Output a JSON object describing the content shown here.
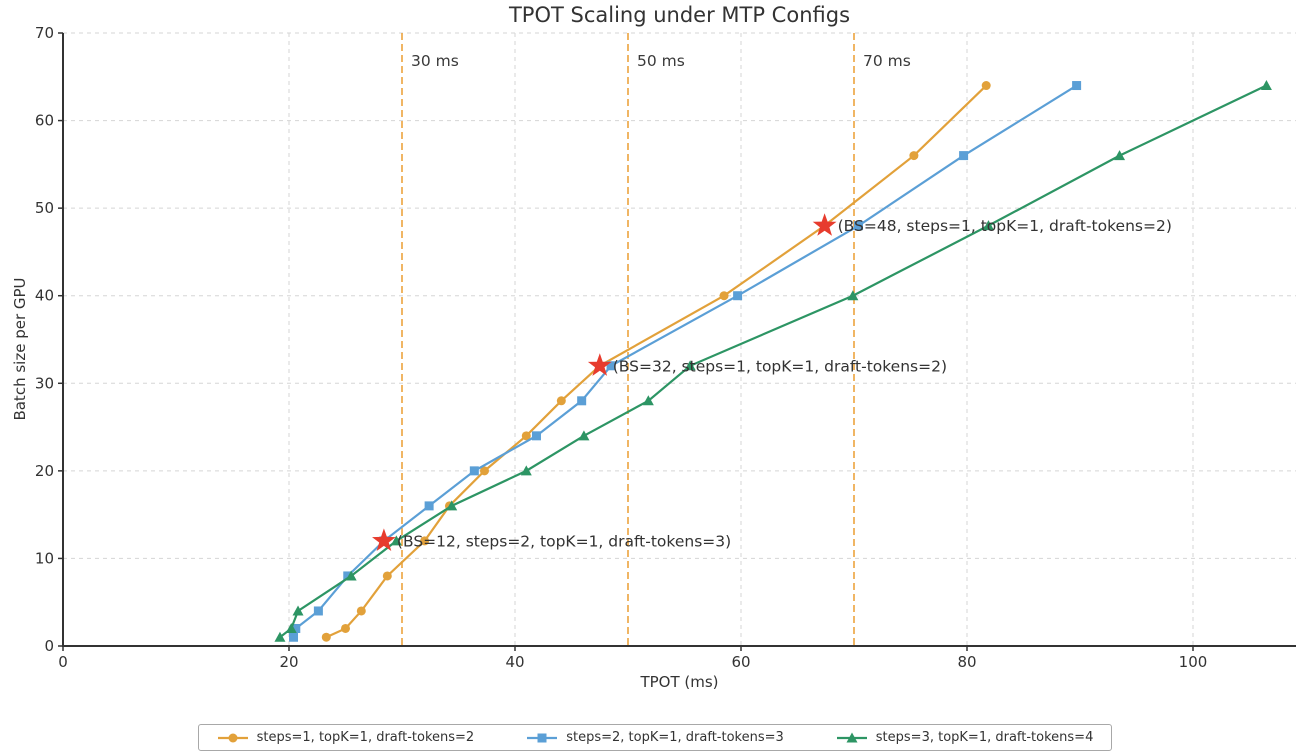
{
  "chart_data": {
    "type": "line",
    "title": "TPOT Scaling under MTP Configs",
    "xlabel": "TPOT (ms)",
    "ylabel": "Batch size per GPU",
    "xlim": [
      0,
      109
    ],
    "ylim": [
      0,
      70
    ],
    "xticks": [
      0,
      20,
      40,
      60,
      80,
      100
    ],
    "yticks": [
      0,
      10,
      20,
      30,
      40,
      50,
      60,
      70
    ],
    "grid": true,
    "legend_position": "bottom-center",
    "batch_sizes": [
      1,
      2,
      4,
      8,
      12,
      16,
      20,
      24,
      28,
      32,
      40,
      48,
      56,
      64
    ],
    "series": [
      {
        "name": "steps=1, topK=1, draft-tokens=2",
        "marker": "circle",
        "color": "#E2A13A",
        "x": [
          23.3,
          25.0,
          26.4,
          28.7,
          32.0,
          34.2,
          37.3,
          41.0,
          44.1,
          47.5,
          58.5,
          67.4,
          75.3,
          81.7
        ],
        "y": [
          1,
          2,
          4,
          8,
          12,
          16,
          20,
          24,
          28,
          32,
          40,
          48,
          56,
          64
        ]
      },
      {
        "name": "steps=2, topK=1, draft-tokens=3",
        "marker": "square",
        "color": "#5B9FD6",
        "x": [
          20.4,
          20.6,
          22.6,
          25.2,
          28.4,
          32.4,
          36.4,
          41.9,
          45.9,
          48.5,
          59.7,
          70.4,
          79.7,
          89.7
        ],
        "y": [
          1,
          2,
          4,
          8,
          12,
          16,
          20,
          24,
          28,
          32,
          40,
          48,
          56,
          64
        ]
      },
      {
        "name": "steps=3, topK=1, draft-tokens=4",
        "marker": "triangle",
        "color": "#2D9564",
        "x": [
          19.2,
          20.2,
          20.8,
          25.5,
          29.5,
          34.4,
          41.0,
          46.1,
          51.8,
          55.5,
          69.9,
          81.9,
          93.5,
          106.5
        ],
        "y": [
          1,
          2,
          4,
          8,
          12,
          16,
          20,
          24,
          28,
          32,
          40,
          48,
          56,
          64
        ]
      }
    ],
    "vlines": [
      {
        "x": 30,
        "label": "30 ms"
      },
      {
        "x": 50,
        "label": "50 ms"
      },
      {
        "x": 70,
        "label": "70 ms"
      }
    ],
    "vline_color": "#EDA33E",
    "annotations": [
      {
        "x": 28.4,
        "y": 12,
        "text": "(BS=12, steps=2, topK=1, draft-tokens=3)"
      },
      {
        "x": 47.5,
        "y": 32,
        "text": "(BS=32, steps=1, topK=1, draft-tokens=2)"
      },
      {
        "x": 67.4,
        "y": 48,
        "text": "(BS=48, steps=1, topK=1, draft-tokens=2)"
      }
    ],
    "star_color": "#E73C2E",
    "grid_color": "#d5d5d5",
    "axis_color": "#333333",
    "text_color": "#333333"
  }
}
